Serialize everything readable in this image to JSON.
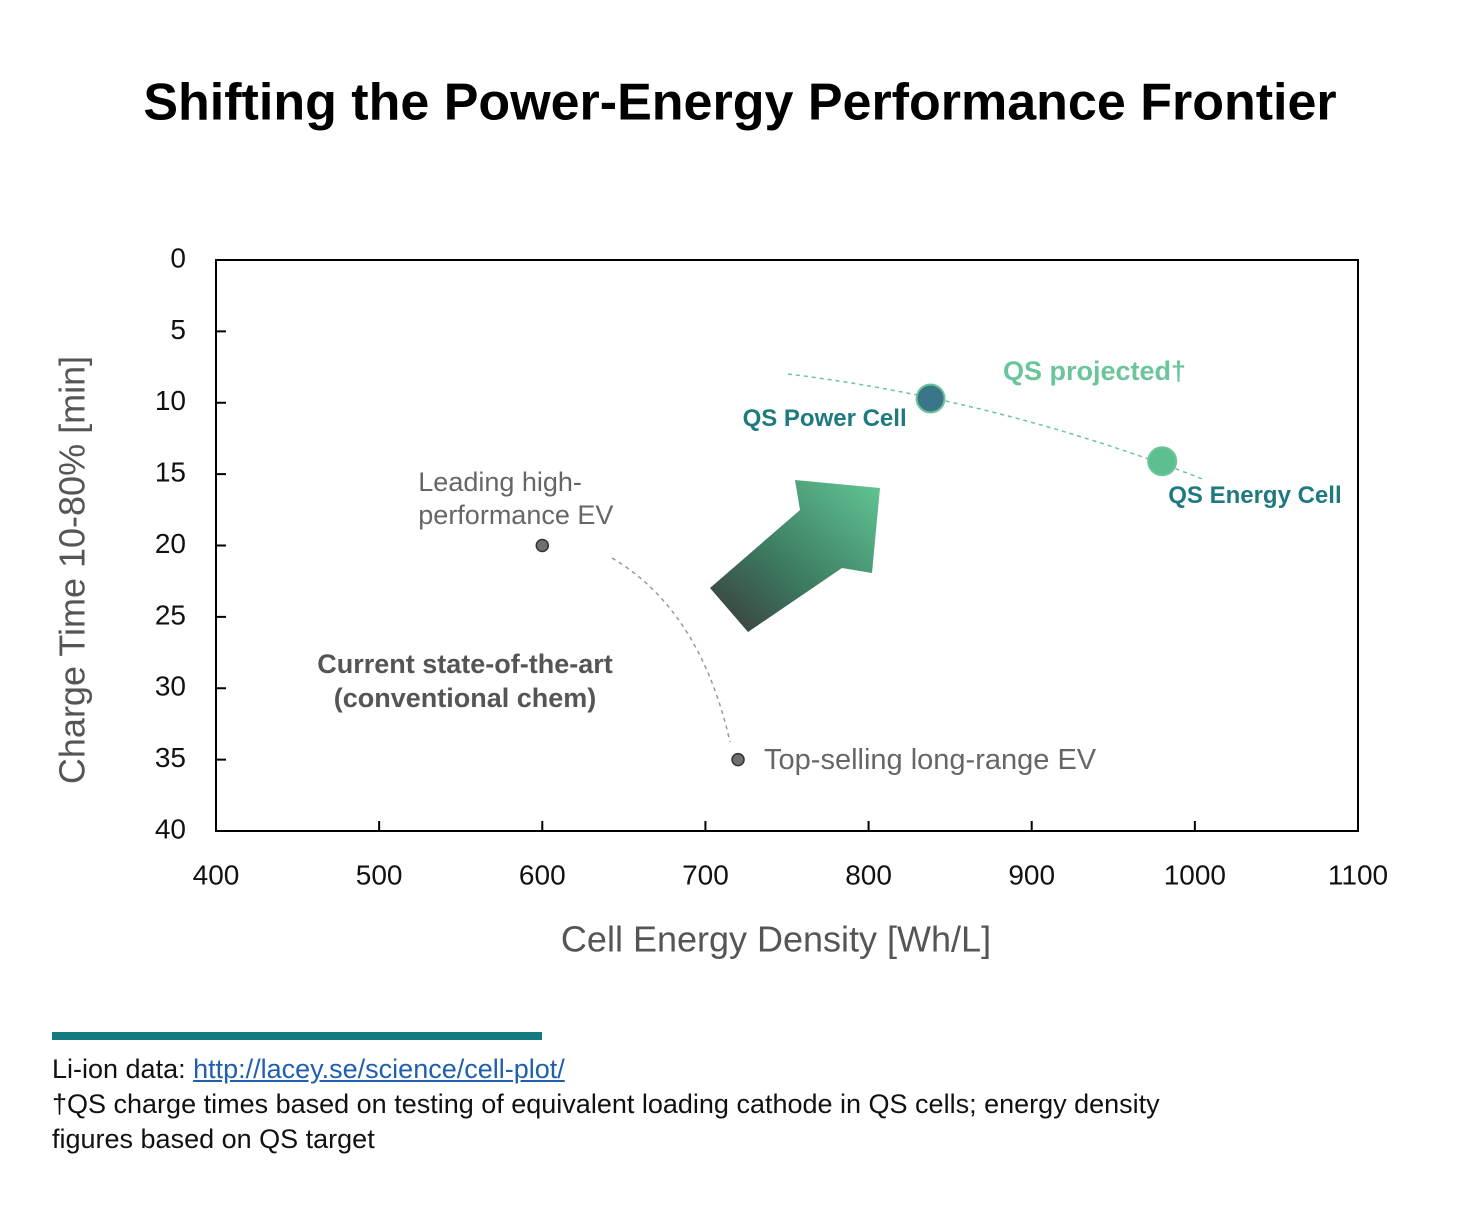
{
  "chart_data": {
    "type": "scatter",
    "title": "Shifting the Power-Energy Performance Frontier",
    "x_label": "Cell Energy Density [Wh/L]",
    "y_label": "Charge Time 10-80% [min]",
    "xlim": [
      400,
      1100
    ],
    "xticks": [
      400,
      500,
      600,
      700,
      800,
      900,
      1000,
      1100
    ],
    "ylim": [
      0,
      40
    ],
    "yticks": [
      0,
      5,
      10,
      15,
      20,
      25,
      30,
      35,
      40
    ],
    "y_inverted": true,
    "series": [
      {
        "name": "Leading high-\nperformance EV",
        "color": "#6f6f6f",
        "x": [
          600
        ],
        "values": [
          20
        ]
      },
      {
        "name": "Top-selling long-range EV",
        "color": "#6f6f6f",
        "x": [
          720
        ],
        "values": [
          35
        ]
      },
      {
        "name": "QS Power Cell",
        "color": "#3b7588",
        "x": [
          838
        ],
        "values": [
          9.7
        ]
      },
      {
        "name": "QS Energy Cell",
        "color": "#5cbf8f",
        "x": [
          980
        ],
        "values": [
          14.1
        ]
      }
    ],
    "annotations": [
      "Current state-of-the-art\n(conventional chem)",
      "QS projected†"
    ]
  },
  "footer": {
    "source_prefix": "Li-ion data: ",
    "source_link": "http://lacey.se/science/cell-plot/",
    "note": "†QS charge times based on testing of equivalent loading cathode in QS cells; energy density figures based on QS target"
  }
}
